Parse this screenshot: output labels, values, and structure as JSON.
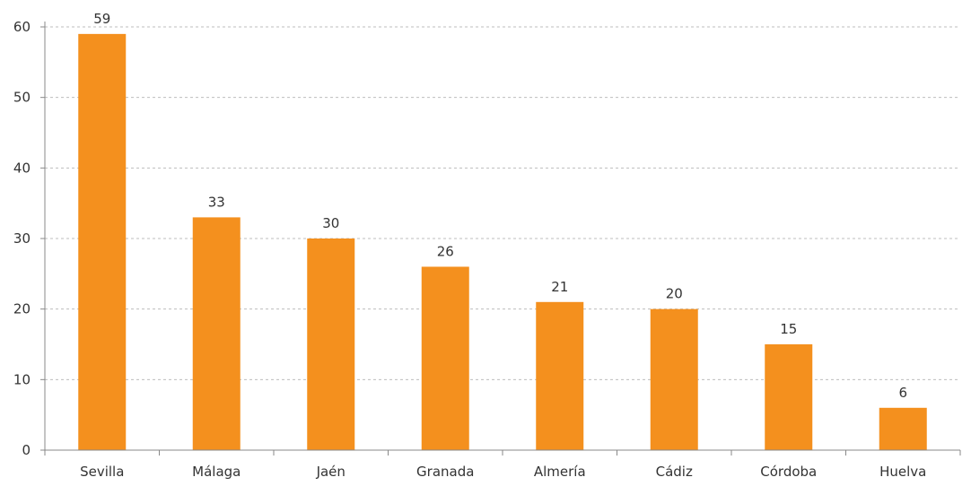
{
  "chart_data": {
    "type": "bar",
    "categories": [
      "Sevilla",
      "Málaga",
      "Jaén",
      "Granada",
      "Almería",
      "Cádiz",
      "Córdoba",
      "Huelva"
    ],
    "values": [
      59,
      33,
      30,
      26,
      21,
      20,
      15,
      6
    ],
    "data_labels": [
      "59",
      "33",
      "30",
      "26",
      "21",
      "20",
      "15",
      "6"
    ],
    "title": "",
    "xlabel": "",
    "ylabel": "",
    "ylim": [
      0,
      60
    ],
    "yticks": [
      0,
      10,
      20,
      30,
      40,
      50,
      60
    ],
    "grid": true,
    "legend": "none",
    "colors": {
      "bar": "#F4901E",
      "grid": "#bdbdbd",
      "axis": "#888888"
    }
  }
}
